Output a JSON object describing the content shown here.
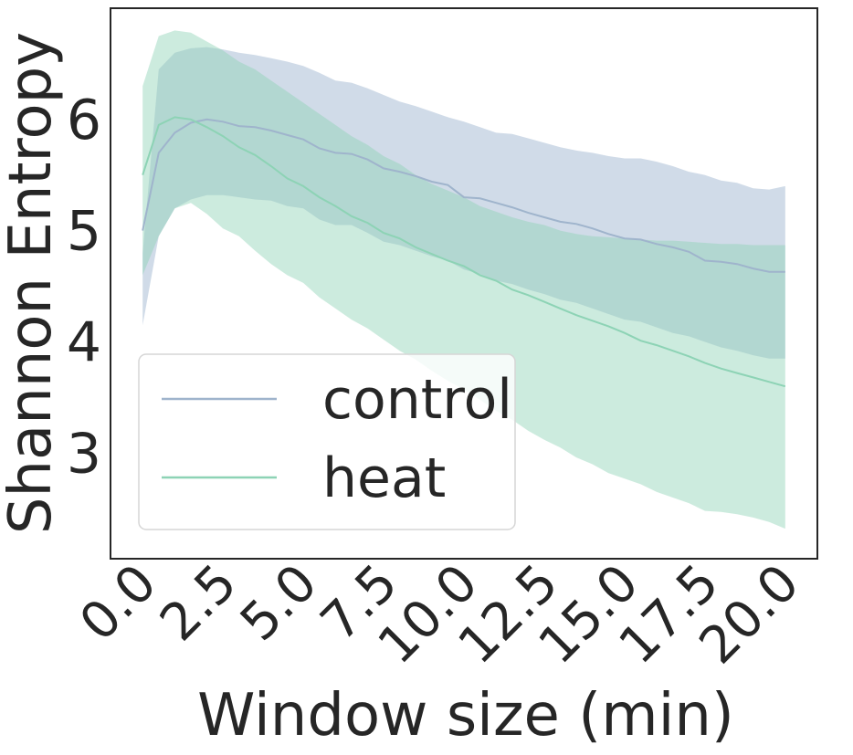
{
  "chart_data": {
    "type": "line",
    "xlabel": "Window size (min)",
    "ylabel": "Shannon Entropy",
    "xlim": [
      -1.0,
      21.0
    ],
    "ylim": [
      2.05,
      7.0
    ],
    "xticks": [
      "0.0",
      "2.5",
      "5.0",
      "7.5",
      "10.0",
      "12.5",
      "15.0",
      "17.5",
      "20.0"
    ],
    "xtick_values": [
      0,
      2.5,
      5,
      7.5,
      10,
      12.5,
      15,
      17.5,
      20
    ],
    "yticks": [
      "3",
      "4",
      "5",
      "6"
    ],
    "ytick_values": [
      3,
      4,
      5,
      6
    ],
    "grid": false,
    "legend_position": "lower-left",
    "x": [
      0.0,
      0.5,
      1.0,
      1.5,
      2.0,
      2.5,
      3.0,
      3.5,
      4.0,
      4.5,
      5.0,
      5.5,
      6.0,
      6.5,
      7.0,
      7.5,
      8.0,
      8.5,
      9.0,
      9.5,
      10.0,
      10.5,
      11.0,
      11.5,
      12.0,
      12.5,
      13.0,
      13.5,
      14.0,
      14.5,
      15.0,
      15.5,
      16.0,
      16.5,
      17.0,
      17.5,
      18.0,
      18.5,
      19.0,
      19.5,
      20.0
    ],
    "series": [
      {
        "name": "control",
        "color": "#9fb4cc",
        "band_color": "#a9bed6",
        "mean": [
          5.0,
          5.7,
          5.88,
          5.97,
          6.0,
          5.98,
          5.94,
          5.93,
          5.9,
          5.86,
          5.82,
          5.74,
          5.7,
          5.69,
          5.64,
          5.56,
          5.53,
          5.49,
          5.44,
          5.41,
          5.3,
          5.29,
          5.25,
          5.21,
          5.16,
          5.12,
          5.08,
          5.06,
          5.02,
          4.97,
          4.93,
          4.92,
          4.88,
          4.85,
          4.81,
          4.73,
          4.72,
          4.7,
          4.66,
          4.63,
          4.63
        ],
        "upper": [
          4.8,
          6.45,
          6.6,
          6.64,
          6.65,
          6.63,
          6.6,
          6.58,
          6.55,
          6.52,
          6.48,
          6.42,
          6.35,
          6.33,
          6.28,
          6.22,
          6.16,
          6.12,
          6.07,
          6.02,
          5.98,
          5.93,
          5.88,
          5.87,
          5.83,
          5.79,
          5.75,
          5.72,
          5.7,
          5.67,
          5.65,
          5.65,
          5.62,
          5.58,
          5.53,
          5.5,
          5.45,
          5.43,
          5.38,
          5.37,
          5.4
        ],
        "lower": [
          4.15,
          4.95,
          5.2,
          5.28,
          5.32,
          5.32,
          5.3,
          5.28,
          5.27,
          5.22,
          5.2,
          5.1,
          5.05,
          5.05,
          4.98,
          4.9,
          4.87,
          4.82,
          4.77,
          4.73,
          4.65,
          4.61,
          4.55,
          4.52,
          4.47,
          4.43,
          4.38,
          4.35,
          4.3,
          4.25,
          4.2,
          4.18,
          4.13,
          4.08,
          4.05,
          4.0,
          3.95,
          3.92,
          3.88,
          3.85,
          3.85
        ]
      },
      {
        "name": "heat",
        "color": "#8dd3b5",
        "band_color": "#8dd3b5",
        "mean": [
          5.5,
          5.95,
          6.02,
          6.0,
          5.93,
          5.85,
          5.75,
          5.68,
          5.58,
          5.47,
          5.4,
          5.3,
          5.22,
          5.13,
          5.07,
          4.98,
          4.93,
          4.85,
          4.79,
          4.73,
          4.68,
          4.6,
          4.55,
          4.47,
          4.42,
          4.36,
          4.3,
          4.24,
          4.19,
          4.14,
          4.08,
          4.01,
          3.97,
          3.92,
          3.87,
          3.81,
          3.76,
          3.72,
          3.68,
          3.64,
          3.6
        ],
        "upper": [
          6.3,
          6.75,
          6.8,
          6.78,
          6.7,
          6.62,
          6.52,
          6.45,
          6.35,
          6.25,
          6.15,
          6.05,
          5.95,
          5.85,
          5.77,
          5.67,
          5.6,
          5.5,
          5.42,
          5.36,
          5.3,
          5.22,
          5.17,
          5.12,
          5.08,
          5.05,
          5.0,
          4.97,
          4.95,
          4.94,
          4.93,
          4.92,
          4.91,
          4.91,
          4.9,
          4.89,
          4.88,
          4.88,
          4.87,
          4.87,
          4.87
        ],
        "lower": [
          4.6,
          4.95,
          5.2,
          5.25,
          5.15,
          5.02,
          4.95,
          4.82,
          4.7,
          4.6,
          4.53,
          4.4,
          4.3,
          4.2,
          4.12,
          4.02,
          3.92,
          3.84,
          3.74,
          3.65,
          3.57,
          3.48,
          3.38,
          3.3,
          3.2,
          3.12,
          3.05,
          2.96,
          2.9,
          2.82,
          2.77,
          2.72,
          2.65,
          2.6,
          2.55,
          2.48,
          2.47,
          2.45,
          2.42,
          2.38,
          2.32
        ]
      }
    ]
  }
}
